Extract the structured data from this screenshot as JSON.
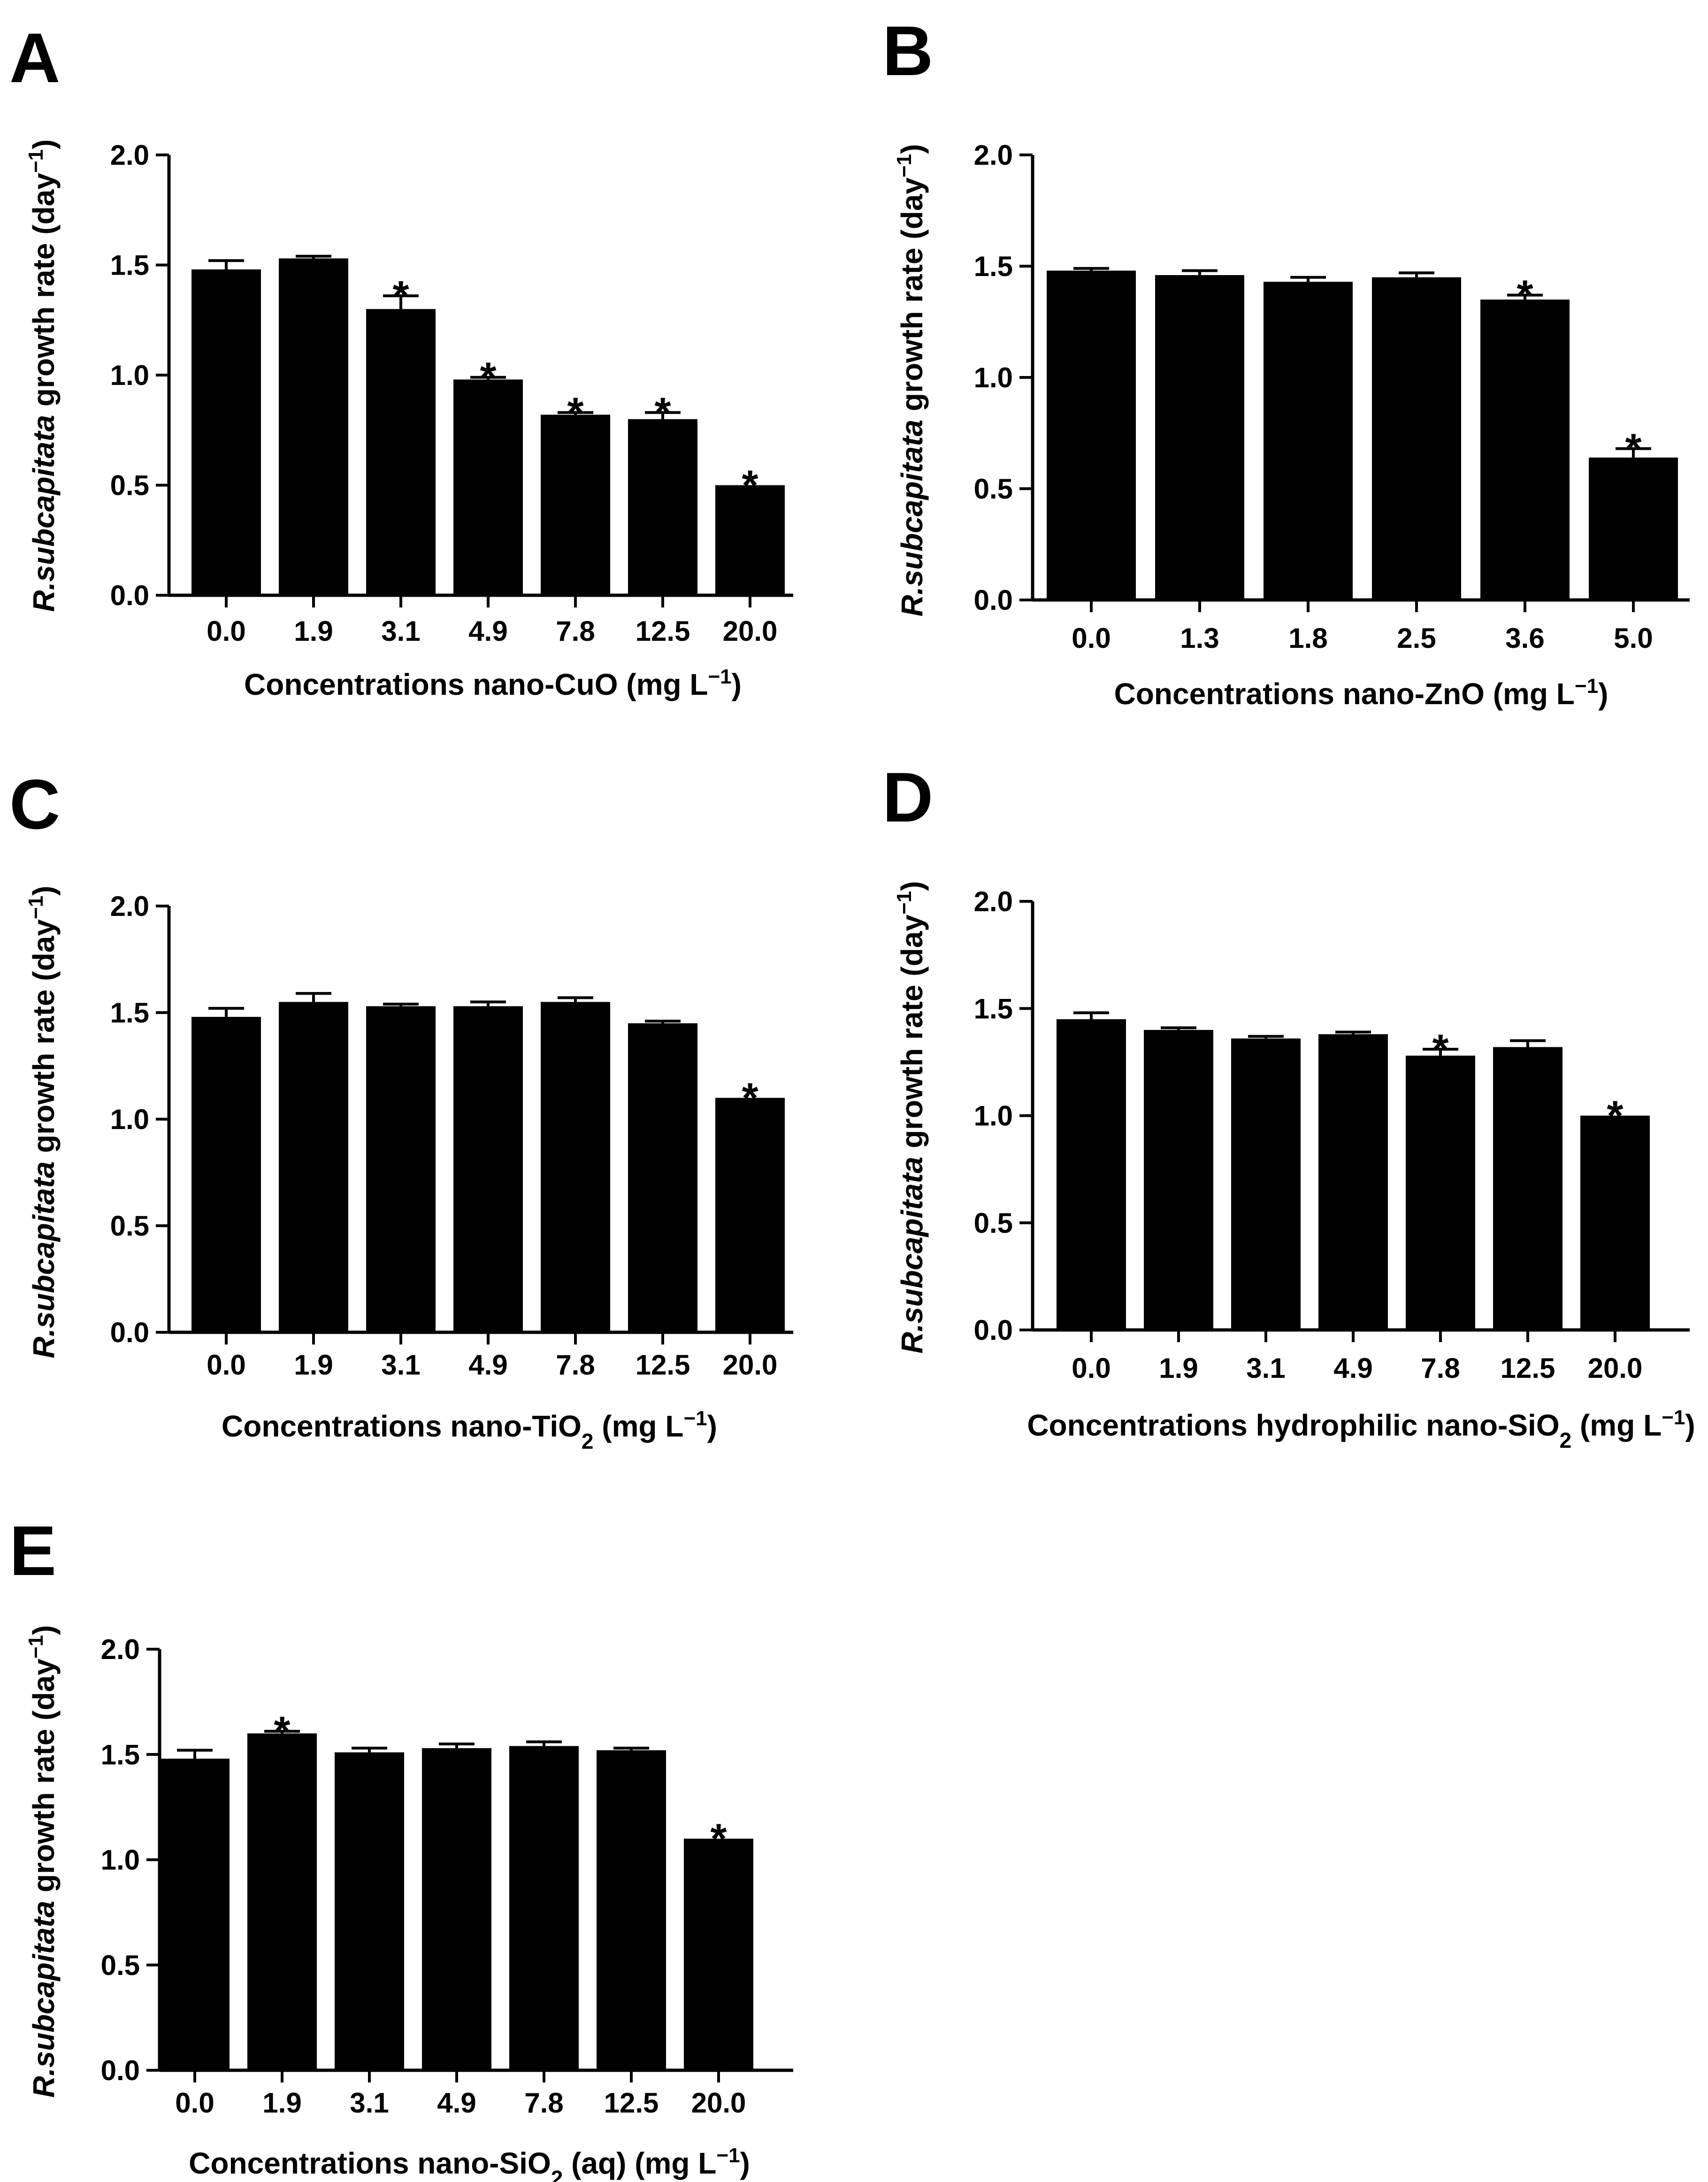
{
  "chart_data": [
    {
      "panel": "A",
      "type": "bar",
      "categories": [
        "0.0",
        "1.9",
        "3.1",
        "4.9",
        "7.8",
        "12.5",
        "20.0"
      ],
      "values": [
        1.48,
        1.53,
        1.3,
        0.98,
        0.82,
        0.8,
        0.5
      ],
      "errors": [
        0.04,
        0.01,
        0.06,
        0.01,
        0.01,
        0.03,
        0.0
      ],
      "significant": [
        false,
        false,
        true,
        true,
        true,
        true,
        true
      ],
      "marker": "*",
      "yticks": [
        "0.0",
        "0.5",
        "1.0",
        "1.5",
        "2.0"
      ],
      "ylim": [
        0,
        2
      ],
      "ylabel_italic": "R.subcapitata",
      "ylabel_rest": " growth rate (day",
      "ylabel_sup": "−1",
      "ylabel_end": ")",
      "xlabel_pre": "Concentrations nano-CuO (mg L",
      "xlabel_sub": "",
      "xlabel_mid": "",
      "xlabel_sup": "−1",
      "xlabel_end": ")"
    },
    {
      "panel": "B",
      "type": "bar",
      "categories": [
        "0.0",
        "1.3",
        "1.8",
        "2.5",
        "3.6",
        "5.0"
      ],
      "values": [
        1.48,
        1.46,
        1.43,
        1.45,
        1.35,
        0.64
      ],
      "errors": [
        0.01,
        0.02,
        0.02,
        0.02,
        0.02,
        0.04
      ],
      "significant": [
        false,
        false,
        false,
        false,
        true,
        true
      ],
      "marker": "*",
      "yticks": [
        "0.0",
        "0.5",
        "1.0",
        "1.5",
        "2.0"
      ],
      "ylim": [
        0,
        2
      ],
      "ylabel_italic": "R.subcapitata",
      "ylabel_rest": " growth rate (day",
      "ylabel_sup": "−1",
      "ylabel_end": ")",
      "xlabel_pre": "Concentrations nano-ZnO (mg L",
      "xlabel_sub": "",
      "xlabel_mid": "",
      "xlabel_sup": "−1",
      "xlabel_end": ")"
    },
    {
      "panel": "C",
      "type": "bar",
      "categories": [
        "0.0",
        "1.9",
        "3.1",
        "4.9",
        "7.8",
        "12.5",
        "20.0"
      ],
      "values": [
        1.48,
        1.55,
        1.53,
        1.53,
        1.55,
        1.45,
        1.1
      ],
      "errors": [
        0.04,
        0.04,
        0.01,
        0.02,
        0.02,
        0.01,
        0.0
      ],
      "significant": [
        false,
        false,
        false,
        false,
        false,
        false,
        true
      ],
      "marker": "*",
      "yticks": [
        "0.0",
        "0.5",
        "1.0",
        "1.5",
        "2.0"
      ],
      "ylim": [
        0,
        2
      ],
      "ylabel_italic": "R.subcapitata",
      "ylabel_rest": " growth rate (day",
      "ylabel_sup": "−1",
      "ylabel_end": ")",
      "xlabel_pre": "Concentrations nano-TiO",
      "xlabel_sub": "2",
      "xlabel_mid": " (mg L",
      "xlabel_sup": "−1",
      "xlabel_end": ")"
    },
    {
      "panel": "D",
      "type": "bar",
      "categories": [
        "0.0",
        "1.9",
        "3.1",
        "4.9",
        "7.8",
        "12.5",
        "20.0"
      ],
      "values": [
        1.45,
        1.4,
        1.36,
        1.38,
        1.28,
        1.32,
        1.0
      ],
      "errors": [
        0.03,
        0.01,
        0.01,
        0.01,
        0.03,
        0.03,
        0.0
      ],
      "significant": [
        false,
        false,
        false,
        false,
        true,
        false,
        true
      ],
      "marker": "*",
      "yticks": [
        "0.0",
        "0.5",
        "1.0",
        "1.5",
        "2.0"
      ],
      "ylim": [
        0,
        2
      ],
      "ylabel_italic": "R.subcapitata",
      "ylabel_rest": " growth rate (day",
      "ylabel_sup": "−1",
      "ylabel_end": ")",
      "xlabel_pre": "Concentrations hydrophilic nano-SiO",
      "xlabel_sub": "2",
      "xlabel_mid": " (mg L",
      "xlabel_sup": "−1",
      "xlabel_end": ")"
    },
    {
      "panel": "E",
      "type": "bar",
      "categories": [
        "0.0",
        "1.9",
        "3.1",
        "4.9",
        "7.8",
        "12.5",
        "20.0"
      ],
      "values": [
        1.48,
        1.6,
        1.51,
        1.53,
        1.54,
        1.52,
        1.1
      ],
      "errors": [
        0.04,
        0.01,
        0.02,
        0.02,
        0.02,
        0.01,
        0.0
      ],
      "significant": [
        false,
        true,
        false,
        false,
        false,
        false,
        true
      ],
      "marker": "*",
      "yticks": [
        "0.0",
        "0.5",
        "1.0",
        "1.5",
        "2.0"
      ],
      "ylim": [
        0,
        2
      ],
      "ylabel_italic": "R.subcapitata",
      "ylabel_rest": " growth rate (day",
      "ylabel_sup": "−1",
      "ylabel_end": ")",
      "xlabel_pre": "Concentrations nano-SiO",
      "xlabel_sub": "2",
      "xlabel_mid": " (aq) (mg L",
      "xlabel_sup": "−1",
      "xlabel_end": ")"
    }
  ]
}
